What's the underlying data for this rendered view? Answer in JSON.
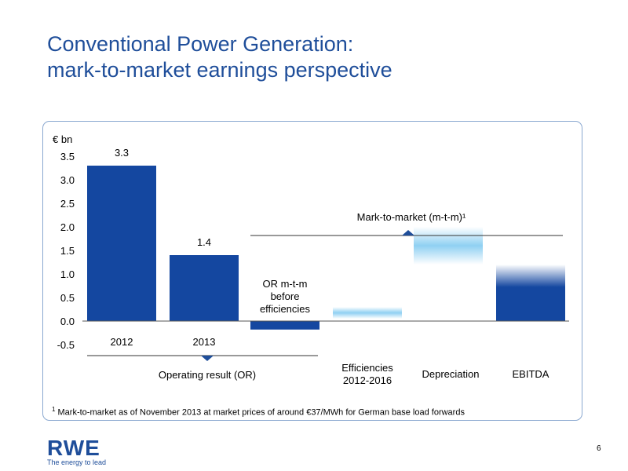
{
  "title": {
    "line1": "Conventional Power Generation:",
    "line2": "mark-to-market earnings perspective"
  },
  "chart_data": {
    "type": "bar",
    "unit_label": "€ bn",
    "ylim": [
      -0.5,
      3.5
    ],
    "yticks": [
      "3.5",
      "3.0",
      "2.5",
      "2.0",
      "1.5",
      "1.0",
      "0.5",
      "0.0",
      "-0.5"
    ],
    "ytick_values": [
      3.5,
      3.0,
      2.5,
      2.0,
      1.5,
      1.0,
      0.5,
      0.0,
      -0.5
    ],
    "bars": [
      {
        "category": "2012",
        "value": 3.3,
        "value_label": "3.3",
        "style": "solid"
      },
      {
        "category": "2013",
        "value": 1.4,
        "value_label": "1.4",
        "style": "solid"
      },
      {
        "category": "OR m-t-m before efficiencies",
        "value": -0.18,
        "style": "solid"
      },
      {
        "category": "Efficiencies 2012-2016",
        "base": 0.3,
        "value": -0.25,
        "style": "fade-light"
      },
      {
        "category": "Depreciation",
        "base": 1.2,
        "value": 0.8,
        "style": "fade-light"
      },
      {
        "category": "EBITDA",
        "value": 1.2,
        "style": "fade-top"
      }
    ],
    "category_labels": {
      "2012": "2012",
      "2013": "2013",
      "or_mtm": [
        "OR m-t-m",
        "before",
        "efficiencies"
      ],
      "efficiencies": [
        "Efficiencies",
        "2012-2016"
      ],
      "depreciation": "Depreciation",
      "ebitda": "EBITDA"
    },
    "brackets": {
      "operating_result": "Operating result (OR)",
      "mark_to_market": "Mark-to-market (m-t-m)¹"
    },
    "colors": {
      "solid": "#1447a0",
      "light": "#8fd0f2",
      "axis": "#555555",
      "bracket": "#333333",
      "marker": "#1f4e9a"
    }
  },
  "footnote": {
    "marker": "1",
    "text": "Mark-to-market as of November 2013 at market prices of around €37/MWh for German base load forwards"
  },
  "logo": {
    "brand": "RWE",
    "tagline": "The energy to lead"
  },
  "page_number": "6"
}
